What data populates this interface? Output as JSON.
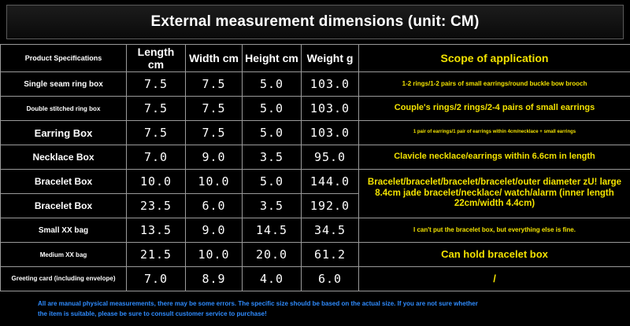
{
  "title": "External measurement dimensions (unit: CM)",
  "headers": {
    "product": "Product Specifications",
    "length": "Length cm",
    "width": "Width cm",
    "height": "Height cm",
    "weight": "Weight g",
    "scope": "Scope of application"
  },
  "rows": [
    {
      "name": "Single seam ring box",
      "length": "7.5",
      "width": "7.5",
      "height": "5.0",
      "weight": "103.0",
      "scope": "1-2 rings/1-2 pairs of small earrings/round buckle bow brooch"
    },
    {
      "name": "Double stitched ring box",
      "length": "7.5",
      "width": "7.5",
      "height": "5.0",
      "weight": "103.0",
      "scope": "Couple's rings/2 rings/2-4 pairs of small earrings"
    },
    {
      "name": "Earring Box",
      "length": "7.5",
      "width": "7.5",
      "height": "5.0",
      "weight": "103.0",
      "scope": "1 pair of earrings/1 pair of earrings within 4cm/necklace + small earrings"
    },
    {
      "name": "Necklace Box",
      "length": "7.0",
      "width": "9.0",
      "height": "3.5",
      "weight": "95.0",
      "scope": "Clavicle necklace/earrings within 6.6cm in length"
    },
    {
      "name": "Bracelet Box",
      "length": "10.0",
      "width": "10.0",
      "height": "5.0",
      "weight": "144.0",
      "scope": "Bracelet/bracelet/bracelet/bracelet/outer diameter zU! large 8.4cm jade bracelet/necklace/ watch/alarm (inner length 22cm/width 4.4cm)"
    },
    {
      "name": "Bracelet Box",
      "length": "23.5",
      "width": "6.0",
      "height": "3.5",
      "weight": "192.0",
      "scope": ""
    },
    {
      "name": "Small XX bag",
      "length": "13.5",
      "width": "9.0",
      "height": "14.5",
      "weight": "34.5",
      "scope": "I can't put the bracelet box, but everything else is fine."
    },
    {
      "name": "Medium XX bag",
      "length": "21.5",
      "width": "10.0",
      "height": "20.0",
      "weight": "61.2",
      "scope": "Can hold bracelet box"
    },
    {
      "name": "Greeting card (including envelope)",
      "length": "7.0",
      "width": "8.9",
      "height": "4.0",
      "weight": "6.0",
      "scope": "/"
    }
  ],
  "footer": {
    "line1": "All are manual physical measurements, there may be some errors. The specific size should be based on the actual size. If you are not sure whether",
    "line2": "the item is suitable, please be sure to consult customer service to purchase!"
  }
}
